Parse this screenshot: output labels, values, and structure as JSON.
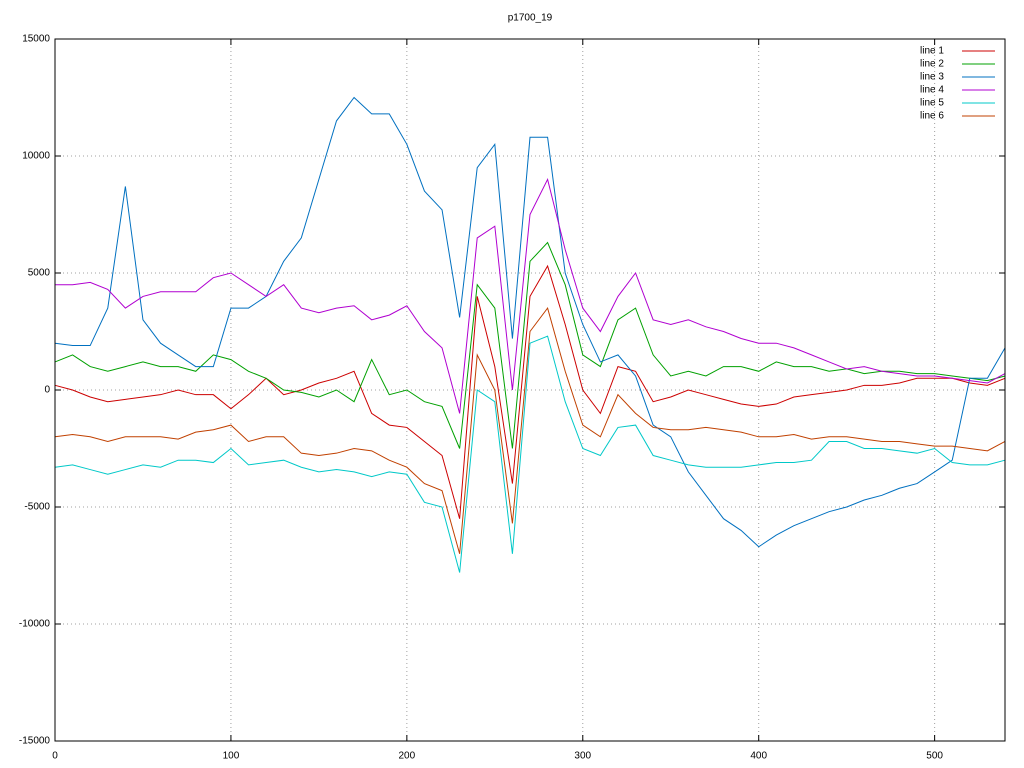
{
  "chart_data": {
    "type": "line",
    "title": "p1700_19",
    "x": [
      0,
      10,
      20,
      30,
      40,
      50,
      60,
      70,
      80,
      90,
      100,
      110,
      120,
      130,
      140,
      150,
      160,
      170,
      180,
      190,
      200,
      210,
      220,
      230,
      240,
      250,
      260,
      270,
      280,
      290,
      300,
      310,
      320,
      330,
      340,
      350,
      360,
      370,
      380,
      390,
      400,
      410,
      420,
      430,
      440,
      450,
      460,
      470,
      480,
      490,
      500,
      510,
      520,
      530,
      540
    ],
    "xlim": [
      0,
      540
    ],
    "xticks": [
      0,
      100,
      200,
      300,
      400,
      500
    ],
    "ylim": [
      -15000,
      15000
    ],
    "yticks": [
      -15000,
      -10000,
      -5000,
      0,
      5000,
      10000,
      15000
    ],
    "grid": true,
    "legend": "top-right",
    "series": [
      {
        "name": "line 1",
        "color": "#cc0000",
        "values": [
          200,
          0,
          -300,
          -500,
          -400,
          -300,
          -200,
          0,
          -200,
          -200,
          -800,
          -200,
          500,
          -200,
          0,
          300,
          500,
          800,
          -1000,
          -1500,
          -1600,
          -2200,
          -2800,
          -5500,
          4000,
          1000,
          -4000,
          4000,
          5300,
          2800,
          0,
          -1000,
          1000,
          800,
          -500,
          -300,
          0,
          -200,
          -400,
          -600,
          -700,
          -600,
          -300,
          -200,
          -100,
          0,
          200,
          200,
          300,
          500,
          500,
          500,
          300,
          200,
          500
        ]
      },
      {
        "name": "line 2",
        "color": "#00a000",
        "values": [
          1200,
          1500,
          1000,
          800,
          1000,
          1200,
          1000,
          1000,
          800,
          1500,
          1300,
          800,
          500,
          0,
          -100,
          -300,
          0,
          -500,
          1300,
          -200,
          0,
          -500,
          -700,
          -2500,
          4500,
          3500,
          -2500,
          5500,
          6300,
          4500,
          1500,
          1000,
          3000,
          3500,
          1500,
          600,
          800,
          600,
          1000,
          1000,
          800,
          1200,
          1000,
          1000,
          800,
          900,
          700,
          800,
          800,
          700,
          700,
          600,
          500,
          400,
          600
        ]
      },
      {
        "name": "line 3",
        "color": "#0070c0",
        "values": [
          2000,
          1900,
          1900,
          3500,
          8700,
          3000,
          2000,
          1500,
          1000,
          1000,
          3500,
          3500,
          4000,
          5500,
          6500,
          9000,
          11500,
          12500,
          11800,
          11800,
          10500,
          8500,
          7700,
          3100,
          9500,
          10500,
          2200,
          10800,
          10800,
          5000,
          2800,
          1200,
          1500,
          600,
          -1500,
          -2000,
          -3500,
          -4500,
          -5500,
          -6000,
          -6700,
          -6200,
          -5800,
          -5500,
          -5200,
          -5000,
          -4700,
          -4500,
          -4200,
          -4000,
          -3500,
          -3000,
          500,
          500,
          1800
        ]
      },
      {
        "name": "line 4",
        "color": "#b000d0",
        "values": [
          4500,
          4500,
          4600,
          4300,
          3500,
          4000,
          4200,
          4200,
          4200,
          4800,
          5000,
          4500,
          4000,
          4500,
          3500,
          3300,
          3500,
          3600,
          3000,
          3200,
          3600,
          2500,
          1800,
          -1000,
          6500,
          7000,
          0,
          7500,
          9000,
          6000,
          3500,
          2500,
          4000,
          5000,
          3000,
          2800,
          3000,
          2700,
          2500,
          2200,
          2000,
          2000,
          1800,
          1500,
          1200,
          900,
          1000,
          800,
          700,
          600,
          600,
          500,
          400,
          300,
          700
        ]
      },
      {
        "name": "line 5",
        "color": "#00c8c8",
        "values": [
          -3300,
          -3200,
          -3400,
          -3600,
          -3400,
          -3200,
          -3300,
          -3000,
          -3000,
          -3100,
          -2500,
          -3200,
          -3100,
          -3000,
          -3300,
          -3500,
          -3400,
          -3500,
          -3700,
          -3500,
          -3600,
          -4800,
          -5000,
          -7800,
          0,
          -500,
          -7000,
          2000,
          2300,
          -500,
          -2500,
          -2800,
          -1600,
          -1500,
          -2800,
          -3000,
          -3200,
          -3300,
          -3300,
          -3300,
          -3200,
          -3100,
          -3100,
          -3000,
          -2200,
          -2200,
          -2500,
          -2500,
          -2600,
          -2700,
          -2500,
          -3100,
          -3200,
          -3200,
          -3000
        ]
      },
      {
        "name": "line 6",
        "color": "#c04000",
        "values": [
          -2000,
          -1900,
          -2000,
          -2200,
          -2000,
          -2000,
          -2000,
          -2100,
          -1800,
          -1700,
          -1500,
          -2200,
          -2000,
          -2000,
          -2700,
          -2800,
          -2700,
          -2500,
          -2600,
          -3000,
          -3300,
          -4000,
          -4300,
          -7000,
          1500,
          0,
          -5700,
          2500,
          3500,
          800,
          -1500,
          -2000,
          -200,
          -1000,
          -1600,
          -1700,
          -1700,
          -1600,
          -1700,
          -1800,
          -2000,
          -2000,
          -1900,
          -2100,
          -2000,
          -2000,
          -2100,
          -2200,
          -2200,
          -2300,
          -2400,
          -2400,
          -2500,
          -2600,
          -2200
        ]
      }
    ]
  }
}
